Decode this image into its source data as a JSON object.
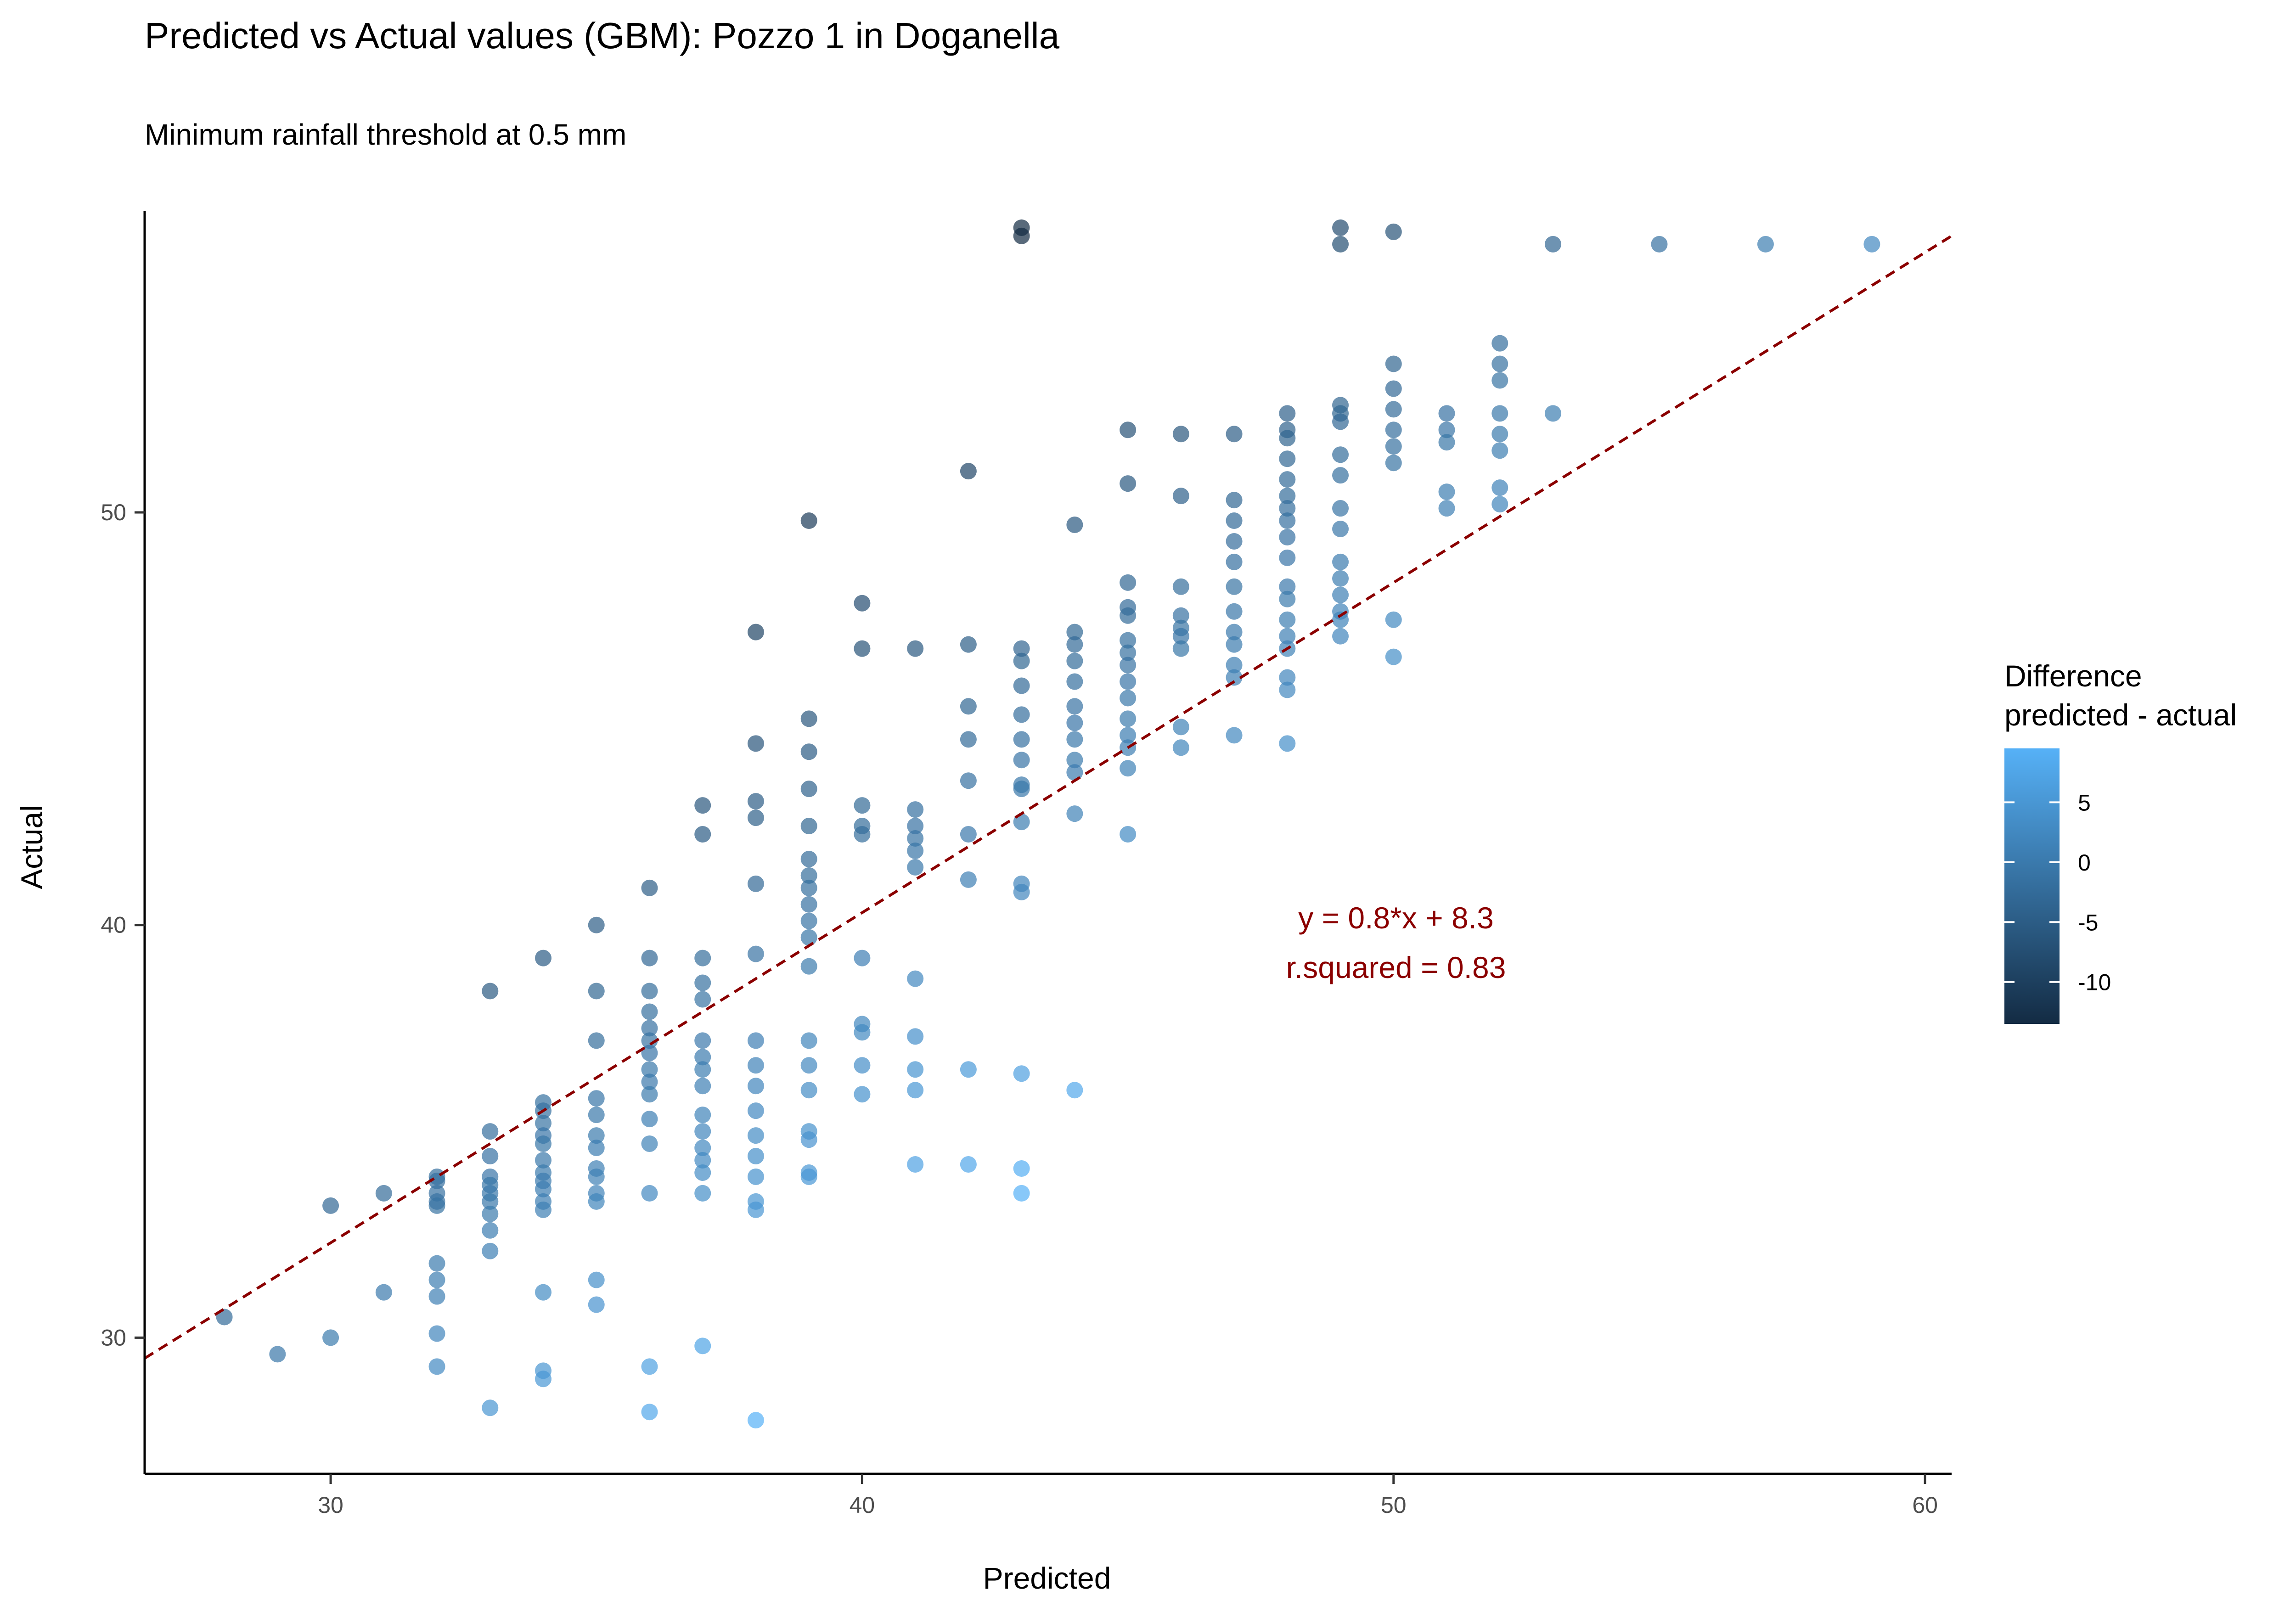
{
  "chart_data": {
    "type": "scatter",
    "title": "Predicted vs Actual values (GBM): Pozzo 1 in Doganella",
    "subtitle": "Minimum rainfall threshold at 0.5 mm",
    "xlabel": "Predicted",
    "ylabel": "Actual",
    "xlim": [
      26.5,
      60.5
    ],
    "ylim": [
      26.7,
      57.3
    ],
    "x_ticks": [
      30,
      40,
      50,
      60
    ],
    "y_ticks": [
      30,
      40,
      50
    ],
    "grid": false,
    "legend": {
      "title_lines": [
        "Difference",
        "predicted - actual"
      ],
      "placement": "right",
      "ticks": [
        5,
        0,
        -5,
        -10
      ],
      "range": [
        -13.5,
        9.5
      ],
      "color_low": "#132B43",
      "color_high": "#56B1F7"
    },
    "fit_line": {
      "slope": 0.8,
      "intercept": 8.3,
      "color": "#8B0000",
      "style": "dashed"
    },
    "annotations": [
      "y = 0.8*x + 8.3",
      "r.squared = 0.83"
    ],
    "annotation_color": "#8B0000",
    "point_opacity": 0.7,
    "points": [
      [
        28,
        30.5
      ],
      [
        29,
        29.6
      ],
      [
        30,
        33.2
      ],
      [
        30,
        30.0
      ],
      [
        31,
        33.5
      ],
      [
        31,
        31.1
      ],
      [
        32,
        33.9
      ],
      [
        32,
        33.8
      ],
      [
        32,
        33.5
      ],
      [
        32,
        33.3
      ],
      [
        32,
        33.2
      ],
      [
        32,
        31.8
      ],
      [
        32,
        31.4
      ],
      [
        32,
        31.0
      ],
      [
        32,
        30.1
      ],
      [
        32,
        29.3
      ],
      [
        33,
        38.4
      ],
      [
        33,
        35.0
      ],
      [
        33,
        34.4
      ],
      [
        33,
        33.9
      ],
      [
        33,
        33.7
      ],
      [
        33,
        33.5
      ],
      [
        33,
        33.3
      ],
      [
        33,
        33.0
      ],
      [
        33,
        32.6
      ],
      [
        33,
        32.1
      ],
      [
        33,
        28.3
      ],
      [
        34,
        39.2
      ],
      [
        34,
        35.7
      ],
      [
        34,
        35.5
      ],
      [
        34,
        35.2
      ],
      [
        34,
        34.9
      ],
      [
        34,
        34.7
      ],
      [
        34,
        34.3
      ],
      [
        34,
        34.0
      ],
      [
        34,
        33.8
      ],
      [
        34,
        33.6
      ],
      [
        34,
        33.3
      ],
      [
        34,
        33.1
      ],
      [
        34,
        31.1
      ],
      [
        34,
        29.2
      ],
      [
        34,
        29.0
      ],
      [
        35,
        40.0
      ],
      [
        35,
        38.4
      ],
      [
        35,
        37.2
      ],
      [
        35,
        35.8
      ],
      [
        35,
        35.4
      ],
      [
        35,
        34.9
      ],
      [
        35,
        34.6
      ],
      [
        35,
        34.1
      ],
      [
        35,
        33.9
      ],
      [
        35,
        33.5
      ],
      [
        35,
        33.3
      ],
      [
        35,
        31.4
      ],
      [
        35,
        30.8
      ],
      [
        36,
        40.9
      ],
      [
        36,
        39.2
      ],
      [
        36,
        38.4
      ],
      [
        36,
        37.9
      ],
      [
        36,
        37.5
      ],
      [
        36,
        37.2
      ],
      [
        36,
        36.9
      ],
      [
        36,
        36.5
      ],
      [
        36,
        36.2
      ],
      [
        36,
        35.9
      ],
      [
        36,
        35.3
      ],
      [
        36,
        34.7
      ],
      [
        36,
        33.5
      ],
      [
        36,
        29.3
      ],
      [
        36,
        28.2
      ],
      [
        37,
        42.9
      ],
      [
        37,
        42.2
      ],
      [
        37,
        39.2
      ],
      [
        37,
        38.6
      ],
      [
        37,
        38.2
      ],
      [
        37,
        37.2
      ],
      [
        37,
        36.8
      ],
      [
        37,
        36.5
      ],
      [
        37,
        36.1
      ],
      [
        37,
        35.4
      ],
      [
        37,
        35.0
      ],
      [
        37,
        34.6
      ],
      [
        37,
        34.3
      ],
      [
        37,
        34.0
      ],
      [
        37,
        33.5
      ],
      [
        37,
        29.8
      ],
      [
        38,
        47.1
      ],
      [
        38,
        44.4
      ],
      [
        38,
        43.0
      ],
      [
        38,
        42.6
      ],
      [
        38,
        41.0
      ],
      [
        38,
        39.3
      ],
      [
        38,
        37.2
      ],
      [
        38,
        36.6
      ],
      [
        38,
        36.1
      ],
      [
        38,
        35.5
      ],
      [
        38,
        34.9
      ],
      [
        38,
        34.4
      ],
      [
        38,
        33.9
      ],
      [
        38,
        33.3
      ],
      [
        38,
        33.1
      ],
      [
        38,
        28.0
      ],
      [
        39,
        49.8
      ],
      [
        39,
        45.0
      ],
      [
        39,
        44.2
      ],
      [
        39,
        43.3
      ],
      [
        39,
        42.4
      ],
      [
        39,
        41.6
      ],
      [
        39,
        41.2
      ],
      [
        39,
        40.9
      ],
      [
        39,
        40.5
      ],
      [
        39,
        40.1
      ],
      [
        39,
        39.7
      ],
      [
        39,
        39.0
      ],
      [
        39,
        37.2
      ],
      [
        39,
        36.6
      ],
      [
        39,
        36.0
      ],
      [
        39,
        35.0
      ],
      [
        39,
        34.8
      ],
      [
        39,
        34.0
      ],
      [
        39,
        33.9
      ],
      [
        40,
        47.8
      ],
      [
        40,
        46.7
      ],
      [
        40,
        42.9
      ],
      [
        40,
        42.4
      ],
      [
        40,
        42.2
      ],
      [
        40,
        39.2
      ],
      [
        40,
        37.6
      ],
      [
        40,
        37.4
      ],
      [
        40,
        36.6
      ],
      [
        40,
        35.9
      ],
      [
        41,
        46.7
      ],
      [
        41,
        42.8
      ],
      [
        41,
        42.4
      ],
      [
        41,
        42.1
      ],
      [
        41,
        41.8
      ],
      [
        41,
        41.4
      ],
      [
        41,
        38.7
      ],
      [
        41,
        37.3
      ],
      [
        41,
        36.5
      ],
      [
        41,
        36.0
      ],
      [
        41,
        34.2
      ],
      [
        42,
        51.0
      ],
      [
        42,
        46.8
      ],
      [
        42,
        45.3
      ],
      [
        42,
        44.5
      ],
      [
        42,
        43.5
      ],
      [
        42,
        42.2
      ],
      [
        42,
        41.1
      ],
      [
        42,
        36.5
      ],
      [
        42,
        34.2
      ],
      [
        43,
        56.9
      ],
      [
        43,
        56.7
      ],
      [
        43,
        46.7
      ],
      [
        43,
        46.4
      ],
      [
        43,
        45.8
      ],
      [
        43,
        45.1
      ],
      [
        43,
        44.5
      ],
      [
        43,
        44.0
      ],
      [
        43,
        43.4
      ],
      [
        43,
        43.3
      ],
      [
        43,
        42.5
      ],
      [
        43,
        41.0
      ],
      [
        43,
        40.8
      ],
      [
        43,
        36.4
      ],
      [
        43,
        34.1
      ],
      [
        43,
        33.5
      ],
      [
        44,
        49.7
      ],
      [
        44,
        47.1
      ],
      [
        44,
        46.8
      ],
      [
        44,
        46.4
      ],
      [
        44,
        45.9
      ],
      [
        44,
        45.3
      ],
      [
        44,
        44.9
      ],
      [
        44,
        44.5
      ],
      [
        44,
        44.0
      ],
      [
        44,
        43.7
      ],
      [
        44,
        42.7
      ],
      [
        44,
        36.0
      ],
      [
        45,
        52.0
      ],
      [
        45,
        50.7
      ],
      [
        45,
        48.3
      ],
      [
        45,
        47.7
      ],
      [
        45,
        47.5
      ],
      [
        45,
        46.9
      ],
      [
        45,
        46.6
      ],
      [
        45,
        46.3
      ],
      [
        45,
        45.9
      ],
      [
        45,
        45.5
      ],
      [
        45,
        45.0
      ],
      [
        45,
        44.6
      ],
      [
        45,
        44.3
      ],
      [
        45,
        43.8
      ],
      [
        45,
        42.2
      ],
      [
        46,
        51.9
      ],
      [
        46,
        50.4
      ],
      [
        46,
        48.2
      ],
      [
        46,
        47.5
      ],
      [
        46,
        47.2
      ],
      [
        46,
        47.0
      ],
      [
        46,
        46.7
      ],
      [
        46,
        44.8
      ],
      [
        46,
        44.3
      ],
      [
        47,
        51.9
      ],
      [
        47,
        50.3
      ],
      [
        47,
        49.8
      ],
      [
        47,
        49.3
      ],
      [
        47,
        48.8
      ],
      [
        47,
        48.2
      ],
      [
        47,
        47.6
      ],
      [
        47,
        47.1
      ],
      [
        47,
        46.8
      ],
      [
        47,
        46.3
      ],
      [
        47,
        46.0
      ],
      [
        47,
        44.6
      ],
      [
        48,
        52.4
      ],
      [
        48,
        52.0
      ],
      [
        48,
        51.8
      ],
      [
        48,
        51.3
      ],
      [
        48,
        50.8
      ],
      [
        48,
        50.4
      ],
      [
        48,
        50.1
      ],
      [
        48,
        49.8
      ],
      [
        48,
        49.4
      ],
      [
        48,
        48.9
      ],
      [
        48,
        48.2
      ],
      [
        48,
        47.9
      ],
      [
        48,
        47.4
      ],
      [
        48,
        47.0
      ],
      [
        48,
        46.7
      ],
      [
        48,
        46.0
      ],
      [
        48,
        45.7
      ],
      [
        48,
        44.4
      ],
      [
        49,
        56.9
      ],
      [
        49,
        56.5
      ],
      [
        49,
        52.6
      ],
      [
        49,
        52.4
      ],
      [
        49,
        52.2
      ],
      [
        49,
        51.4
      ],
      [
        49,
        50.9
      ],
      [
        49,
        50.1
      ],
      [
        49,
        49.6
      ],
      [
        49,
        48.8
      ],
      [
        49,
        48.4
      ],
      [
        49,
        48.0
      ],
      [
        49,
        47.6
      ],
      [
        49,
        47.4
      ],
      [
        49,
        47.0
      ],
      [
        50,
        56.8
      ],
      [
        50,
        53.6
      ],
      [
        50,
        53.0
      ],
      [
        50,
        52.5
      ],
      [
        50,
        52.0
      ],
      [
        50,
        51.6
      ],
      [
        50,
        51.2
      ],
      [
        50,
        47.4
      ],
      [
        50,
        46.5
      ],
      [
        51,
        52.4
      ],
      [
        51,
        52.0
      ],
      [
        51,
        51.7
      ],
      [
        51,
        50.5
      ],
      [
        51,
        50.1
      ],
      [
        52,
        54.1
      ],
      [
        52,
        53.6
      ],
      [
        52,
        53.2
      ],
      [
        52,
        52.4
      ],
      [
        52,
        51.9
      ],
      [
        52,
        51.5
      ],
      [
        52,
        50.6
      ],
      [
        52,
        50.2
      ],
      [
        53,
        56.5
      ],
      [
        53,
        52.4
      ],
      [
        55,
        56.5
      ],
      [
        57,
        56.5
      ],
      [
        59,
        56.5
      ]
    ]
  }
}
